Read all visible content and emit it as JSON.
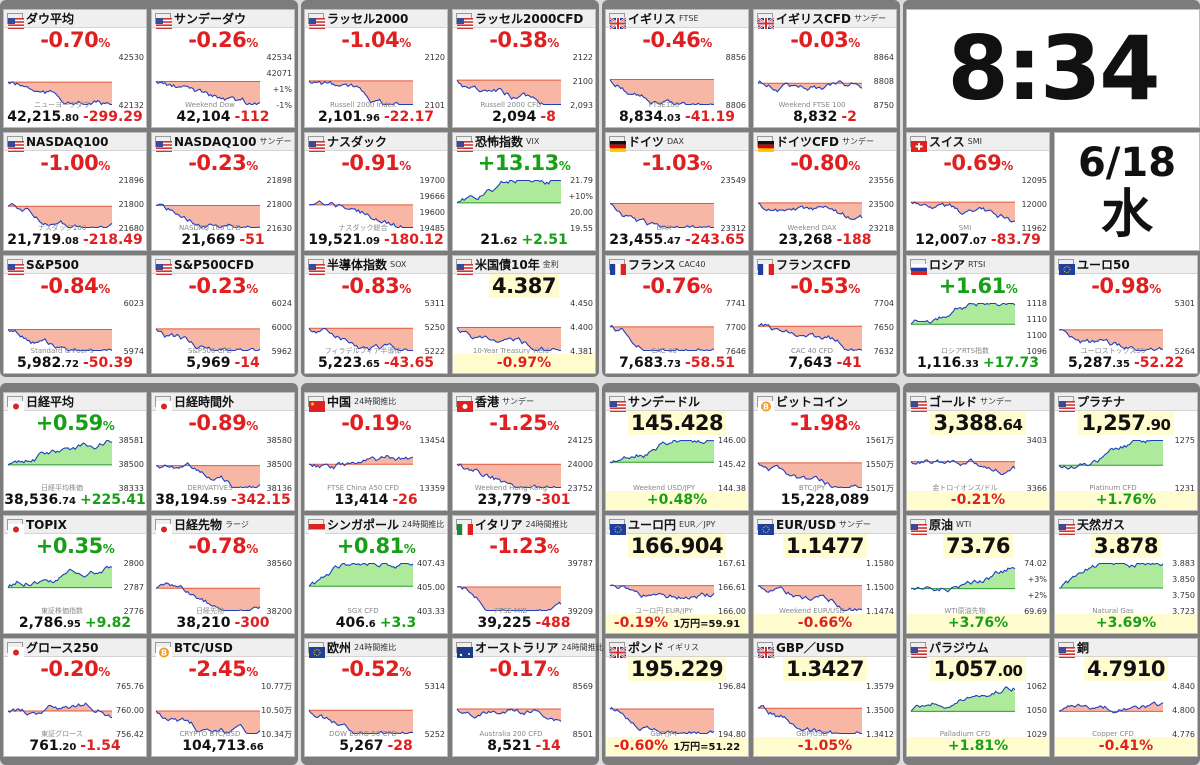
{
  "clock": {
    "time": "8:34",
    "date": "6/18",
    "weekday": "水"
  },
  "colors": {
    "up": "#17a017",
    "down": "#e02020",
    "fill_down": "#f7aa94",
    "fill_up": "#9fe68a",
    "line": "#1f3fbf",
    "foot_bg": "#fffcd0"
  },
  "cards": [
    {
      "name": "ダウ平均",
      "sub": "",
      "flag": "us",
      "chg": "-0.70",
      "px": "42,215",
      "dec": ".80",
      "diff": "-299.29",
      "mode": "fill",
      "trend": "down",
      "axis": [
        "42530",
        "42132"
      ],
      "wm": "ニューヨークダウ"
    },
    {
      "name": "サンデーダウ",
      "sub": "",
      "flag": "us",
      "chg": "-0.26",
      "px": "42,104",
      "dec": "",
      "diff": "-112",
      "mode": "fill",
      "trend": "down",
      "axis": [
        "42534",
        "42071",
        "+1%",
        "-1%"
      ],
      "wm": "Weekend Dow"
    },
    {
      "name": "ラッセル2000",
      "sub": "",
      "flag": "us",
      "chg": "-1.04",
      "px": "2,101",
      "dec": ".96",
      "diff": "-22.17",
      "mode": "fill",
      "trend": "down",
      "axis": [
        "2120",
        "2101"
      ],
      "wm": "Russell 2000 Index"
    },
    {
      "name": "ラッセル2000CFD",
      "sub": "",
      "flag": "us",
      "chg": "-0.38",
      "px": "2,094",
      "dec": "",
      "diff": "-8",
      "mode": "fill",
      "trend": "down",
      "axis": [
        "2122",
        "2100",
        "2,093"
      ],
      "wm": "Russell 2000 CFD"
    },
    {
      "name": "イギリス",
      "sub": "FTSE",
      "flag": "uk",
      "chg": "-0.46",
      "px": "8,834",
      "dec": ".03",
      "diff": "-41.19",
      "mode": "fill",
      "trend": "down",
      "axis": [
        "8856",
        "8806"
      ],
      "wm": "FTSE100"
    },
    {
      "name": "イギリスCFD",
      "sub": "サンデー",
      "flag": "uk",
      "chg": "-0.03",
      "px": "8,832",
      "dec": "",
      "diff": "-2",
      "mode": "fill",
      "trend": "flat",
      "axis": [
        "8864",
        "8808",
        "8750"
      ],
      "wm": "Weekend FTSE 100"
    },
    {
      "name": "NASDAQ100",
      "sub": "",
      "flag": "us",
      "chg": "-1.00",
      "px": "21,719",
      "dec": ".08",
      "diff": "-218.49",
      "mode": "fill",
      "trend": "down",
      "axis": [
        "21896",
        "21800",
        "21680"
      ],
      "wm": "ナスダック100"
    },
    {
      "name": "NASDAQ100",
      "sub": "サンデー",
      "flag": "us",
      "chg": "-0.23",
      "px": "21,669",
      "dec": "",
      "diff": "-51",
      "mode": "fill",
      "trend": "down",
      "axis": [
        "21898",
        "21800",
        "21630"
      ],
      "wm": "NASDAQ 100 CFD"
    },
    {
      "name": "ナスダック",
      "sub": "",
      "flag": "us",
      "chg": "-0.91",
      "px": "19,521",
      "dec": ".09",
      "diff": "-180.12",
      "mode": "fill",
      "trend": "down",
      "axis": [
        "19700",
        "19666",
        "19600",
        "19485"
      ],
      "wm": "ナスダック総合"
    },
    {
      "name": "恐怖指数",
      "sub": "VIX",
      "flag": "us",
      "chg": "+13.13",
      "px": "21",
      "dec": ".62",
      "diff": "+2.51",
      "mode": "fill",
      "trend": "up",
      "axis": [
        "21.79",
        "+10%",
        "20.00",
        "19.55"
      ],
      "wm": ""
    },
    {
      "name": "ドイツ",
      "sub": "DAX",
      "flag": "de",
      "chg": "-1.03",
      "px": "23,455",
      "dec": ".47",
      "diff": "-243.65",
      "mode": "fill",
      "trend": "down",
      "axis": [
        "23549",
        "23312"
      ],
      "wm": "DAX"
    },
    {
      "name": "ドイツCFD",
      "sub": "サンデー",
      "flag": "de",
      "chg": "-0.80",
      "px": "23,268",
      "dec": "",
      "diff": "-188",
      "mode": "fill",
      "trend": "down",
      "axis": [
        "23556",
        "23500",
        "23218"
      ],
      "wm": "Weekend DAX"
    },
    {
      "name": "スイス",
      "sub": "SMI",
      "flag": "ch",
      "chg": "-0.69",
      "px": "12,007",
      "dec": ".07",
      "diff": "-83.79",
      "mode": "fill",
      "trend": "down",
      "axis": [
        "12095",
        "12000",
        "11962"
      ],
      "wm": "SMI"
    },
    {
      "name": "S&P500",
      "sub": "",
      "flag": "us",
      "chg": "-0.84",
      "px": "5,982",
      "dec": ".72",
      "diff": "-50.39",
      "mode": "fill",
      "trend": "down",
      "axis": [
        "6023",
        "5974"
      ],
      "wm": "Standard & Poor's"
    },
    {
      "name": "S&P500CFD",
      "sub": "",
      "flag": "us",
      "chg": "-0.23",
      "px": "5,969",
      "dec": "",
      "diff": "-14",
      "mode": "fill",
      "trend": "down",
      "axis": [
        "6024",
        "6000",
        "5962"
      ],
      "wm": "S&P500 CFD"
    },
    {
      "name": "半導体指数",
      "sub": "SOX",
      "flag": "us",
      "chg": "-0.83",
      "px": "5,223",
      "dec": ".65",
      "diff": "-43.65",
      "mode": "fill",
      "trend": "down",
      "axis": [
        "5311",
        "5250",
        "5222"
      ],
      "wm": "フィラデルフィア半導体"
    },
    {
      "name": "米国債10年",
      "sub": "金利",
      "flag": "us",
      "chg": "4.387",
      "px": "-0.97%",
      "dec": "",
      "diff": "",
      "mode": "rate",
      "trend": "down",
      "axis": [
        "4.450",
        "4.400",
        "4.381"
      ],
      "wm": "10-Year Treasury Yield"
    },
    {
      "name": "フランス",
      "sub": "CAC40",
      "flag": "fr",
      "chg": "-0.76",
      "px": "7,683",
      "dec": ".73",
      "diff": "-58.51",
      "mode": "fill",
      "trend": "down",
      "axis": [
        "7741",
        "7700",
        "7646"
      ],
      "wm": "CAC 40"
    },
    {
      "name": "フランスCFD",
      "sub": "",
      "flag": "fr",
      "chg": "-0.53",
      "px": "7,643",
      "dec": "",
      "diff": "-41",
      "mode": "fill",
      "trend": "down",
      "axis": [
        "7704",
        "7650",
        "7632"
      ],
      "wm": "CAC 40 CFD"
    },
    {
      "name": "ロシア",
      "sub": "RTSI",
      "flag": "ru",
      "chg": "+1.61",
      "px": "1,116",
      "dec": ".33",
      "diff": "+17.73",
      "mode": "fill",
      "trend": "up",
      "axis": [
        "1118",
        "1110",
        "1100",
        "1096"
      ],
      "wm": "ロシアRTS指数"
    },
    {
      "name": "ユーロ50",
      "sub": "",
      "flag": "eu",
      "chg": "-0.98",
      "px": "5,287",
      "dec": ".35",
      "diff": "-52.22",
      "mode": "fill",
      "trend": "down",
      "axis": [
        "5301",
        "5264"
      ],
      "wm": "ユーロストックス50"
    },
    {
      "name": "日経平均",
      "sub": "",
      "flag": "jp",
      "chg": "+0.59",
      "px": "38,536",
      "dec": ".74",
      "diff": "+225.41",
      "mode": "fill",
      "trend": "up",
      "axis": [
        "38581",
        "38500",
        "38333"
      ],
      "wm": "日経平均株価"
    },
    {
      "name": "日経時間外",
      "sub": "",
      "flag": "jp",
      "chg": "-0.89",
      "px": "38,194",
      "dec": ".59",
      "diff": "-342.15",
      "mode": "fill",
      "trend": "down",
      "axis": [
        "38580",
        "38500",
        "38136"
      ],
      "wm": "DERIVATIVES"
    },
    {
      "name": "中国",
      "sub": "24時間推比",
      "flag": "cn",
      "chg": "-0.19",
      "px": "13,414",
      "dec": "",
      "diff": "-26",
      "mode": "fill",
      "trend": "flat",
      "axis": [
        "13454",
        "13359"
      ],
      "wm": "FTSE China A50 CFD"
    },
    {
      "name": "香港",
      "sub": "サンデー",
      "flag": "hk",
      "chg": "-1.25",
      "px": "23,779",
      "dec": "",
      "diff": "-301",
      "mode": "fill",
      "trend": "down",
      "axis": [
        "24125",
        "24000",
        "23752"
      ],
      "wm": "Weekend Hong Kong"
    },
    {
      "name": "サンデードル",
      "sub": "",
      "flag": "us",
      "chg": "145.428",
      "px": "+0.48%",
      "dec": "",
      "diff": "",
      "mode": "price",
      "trend": "up",
      "axis": [
        "146.00",
        "145.42",
        "144.38"
      ],
      "wm": "Weekend USD/JPY"
    },
    {
      "name": "ビットコイン",
      "sub": "",
      "flag": "btc",
      "chg": "-1.98",
      "px": "15,228,089",
      "dec": "",
      "diff": "",
      "mode": "fill",
      "trend": "down",
      "axis": [
        "1561万",
        "1550万",
        "1501万"
      ],
      "wm": "BTC/JPY"
    },
    {
      "name": "ゴールド",
      "sub": "サンデー",
      "flag": "us",
      "chg": "3,388",
      "dec2": ".64",
      "px": "-0.21%",
      "dec": "",
      "diff": "",
      "mode": "price",
      "trend": "flat",
      "axis": [
        "3403",
        "3366"
      ],
      "wm": "金トロイオンス/ドル"
    },
    {
      "name": "プラチナ",
      "sub": "",
      "flag": "us",
      "chg": "1,257",
      "dec2": ".90",
      "px": "+1.76%",
      "dec": "",
      "diff": "",
      "mode": "price",
      "trend": "up",
      "axis": [
        "1275",
        "1231"
      ],
      "wm": "Platinum CFD"
    },
    {
      "name": "TOPIX",
      "sub": "",
      "flag": "jp",
      "chg": "+0.35",
      "px": "2,786",
      "dec": ".95",
      "diff": "+9.82",
      "mode": "fill",
      "trend": "up",
      "axis": [
        "2800",
        "2787",
        "2776"
      ],
      "wm": "東証株価指数"
    },
    {
      "name": "日経先物",
      "sub": "ラージ",
      "flag": "jp",
      "chg": "-0.78",
      "px": "38,210",
      "dec": "",
      "diff": "-300",
      "mode": "fill",
      "trend": "down",
      "axis": [
        "38560",
        "38200"
      ],
      "wm": "日経先物"
    },
    {
      "name": "シンガポール",
      "sub": "24時間推比",
      "flag": "sg",
      "chg": "+0.81",
      "px": "406",
      "dec": ".6",
      "diff": "+3.3",
      "mode": "fill",
      "trend": "up",
      "axis": [
        "407.43",
        "405.00",
        "403.33"
      ],
      "wm": "SGX CFD"
    },
    {
      "name": "イタリア",
      "sub": "24時間推比",
      "flag": "it",
      "chg": "-1.23",
      "px": "39,225",
      "dec": "",
      "diff": "-488",
      "mode": "fill",
      "trend": "down",
      "axis": [
        "39787",
        "39209"
      ],
      "wm": "FTSE MIB"
    },
    {
      "name": "ユーロ円",
      "sub": "EUR／JPY",
      "flag": "eu",
      "chg": "166.904",
      "px": "-0.19%",
      "dec": "",
      "diff": "1万円=59.91",
      "mode": "price",
      "trend": "flat",
      "axis": [
        "167.61",
        "166.61",
        "166.00"
      ],
      "wm": "ユーロ円 EUR/JPY"
    },
    {
      "name": "EUR/USD",
      "sub": "サンデー",
      "flag": "eu",
      "chg": "1.1477",
      "px": "-0.66%",
      "dec": "",
      "diff": "",
      "mode": "price",
      "trend": "down",
      "axis": [
        "1.1580",
        "1.1500",
        "1.1474"
      ],
      "wm": "Weekend EUR/USD"
    },
    {
      "name": "原油",
      "sub": "WTI",
      "flag": "us",
      "chg": "73.76",
      "px": "+3.76%",
      "dec": "",
      "diff": "",
      "mode": "price",
      "trend": "up",
      "axis": [
        "74.02",
        "+3%",
        "+2%",
        "69.69"
      ],
      "wm": "WTI原油先物"
    },
    {
      "name": "天然ガス",
      "sub": "",
      "flag": "us",
      "chg": "3.878",
      "px": "+3.69%",
      "dec": "",
      "diff": "",
      "mode": "price",
      "trend": "up",
      "axis": [
        "3.883",
        "3.850",
        "3.750",
        "3.723"
      ],
      "wm": "Natural Gas"
    },
    {
      "name": "グロース250",
      "sub": "",
      "flag": "jp",
      "chg": "-0.20",
      "px": "761",
      "dec": ".20",
      "diff": "-1.54",
      "mode": "fill",
      "trend": "flat",
      "axis": [
        "765.76",
        "760.00",
        "756.42"
      ],
      "wm": "東証グロース"
    },
    {
      "name": "BTC/USD",
      "sub": "",
      "flag": "btc",
      "chg": "-2.45",
      "px": "104,713",
      "dec": ".66",
      "diff": "",
      "mode": "fill",
      "trend": "down",
      "axis": [
        "10.77万",
        "10.50万",
        "10.34万"
      ],
      "wm": "CRYPTO BTC/USD"
    },
    {
      "name": "欧州",
      "sub": "24時間推比",
      "flag": "eu",
      "chg": "-0.52",
      "px": "5,267",
      "dec": "",
      "diff": "-28",
      "mode": "fill",
      "trend": "down",
      "axis": [
        "5314",
        "5252"
      ],
      "wm": "DOW EURO 50 CFD"
    },
    {
      "name": "オーストラリア",
      "sub": "24時間推比",
      "flag": "au",
      "chg": "-0.17",
      "px": "8,521",
      "dec": "",
      "diff": "-14",
      "mode": "fill",
      "trend": "flat",
      "axis": [
        "8569",
        "8501"
      ],
      "wm": "Australia 200 CFD"
    },
    {
      "name": "ポンド",
      "sub": "イギリス",
      "flag": "uk",
      "chg": "195.229",
      "px": "-0.60%",
      "dec": "",
      "diff": "1万円=51.22",
      "mode": "price",
      "trend": "down",
      "axis": [
        "196.84",
        "194.80"
      ],
      "wm": "GBP/JPY"
    },
    {
      "name": "GBP／USD",
      "sub": "",
      "flag": "uk",
      "chg": "1.3427",
      "px": "-1.05%",
      "dec": "",
      "diff": "",
      "mode": "price",
      "trend": "down",
      "axis": [
        "1.3579",
        "1.3500",
        "1.3412"
      ],
      "wm": "GBP/USD"
    },
    {
      "name": "パラジウム",
      "sub": "",
      "flag": "us",
      "chg": "1,057",
      "dec2": ".00",
      "px": "+1.81%",
      "dec": "",
      "diff": "",
      "mode": "price",
      "trend": "up",
      "axis": [
        "1062",
        "1050",
        "1029"
      ],
      "wm": "Palladium CFD"
    },
    {
      "name": "銅",
      "sub": "",
      "flag": "us",
      "chg": "4.7910",
      "px": "-0.41%",
      "dec": "",
      "diff": "",
      "mode": "price",
      "trend": "flat",
      "axis": [
        "4.840",
        "4.800",
        "4.776"
      ],
      "wm": "Copper CFD"
    }
  ]
}
